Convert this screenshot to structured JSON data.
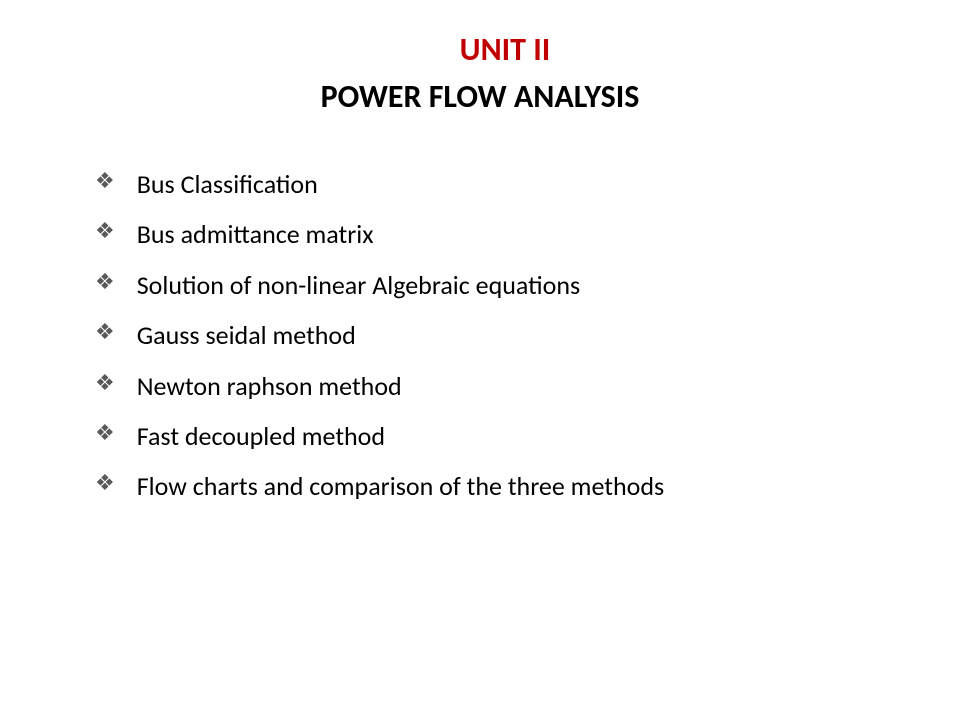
{
  "heading": {
    "unit": "UNIT II",
    "title": "POWER FLOW ANALYSIS"
  },
  "bullets": {
    "items": [
      "Bus Classification",
      "Bus admittance matrix",
      "Solution of non-linear Algebraic equations",
      "Gauss seidal method",
      "Newton raphson method",
      "Fast decoupled method",
      "Flow charts and comparison of the three methods"
    ]
  },
  "style": {
    "unit_color": "#c00000",
    "title_color": "#000000",
    "text_color": "#000000",
    "bullet_color": "#595959",
    "background_color": "#ffffff",
    "unit_fontsize": 32,
    "title_fontsize": 32,
    "item_fontsize": 26,
    "bullet_glyph": "❖"
  }
}
